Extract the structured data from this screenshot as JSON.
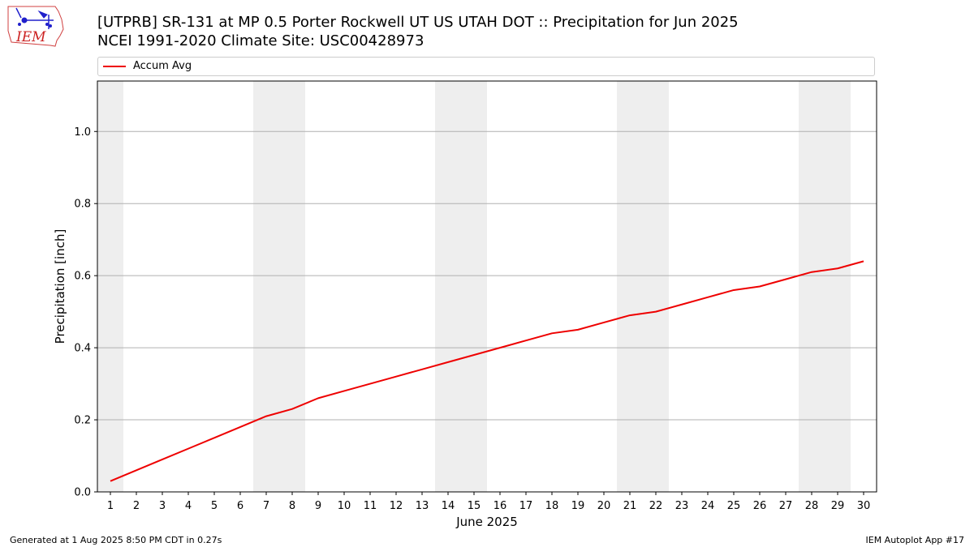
{
  "header": {
    "title_line1": "[UTPRB] SR-131 at MP 0.5 Porter Rockwell UT US UTAH DOT :: Precipitation for Jun 2025",
    "title_line2": "NCEI 1991-2020 Climate Site: USC00428973"
  },
  "logo": {
    "text": "IEM",
    "icon": "iowa-state-weather-icon"
  },
  "footer": {
    "left": "Generated at 1 Aug 2025 8:50 PM CDT in 0.27s",
    "right": "IEM Autoplot App #17"
  },
  "colors": {
    "series": "#ee0000",
    "weekend_band": "#eeeeee",
    "grid": "#b0b0b0"
  },
  "chart_data": {
    "type": "line",
    "xlabel": "June 2025",
    "ylabel": "Precipitation [inch]",
    "xlim": [
      0.5,
      30.5
    ],
    "ylim": [
      0,
      1.14
    ],
    "yticks": [
      0.0,
      0.2,
      0.4,
      0.6,
      0.8,
      1.0
    ],
    "ytick_labels": [
      "0.0",
      "0.2",
      "0.4",
      "0.6",
      "0.8",
      "1.0"
    ],
    "grid": "horizontal",
    "legend_placement": "top",
    "x": [
      1,
      2,
      3,
      4,
      5,
      6,
      7,
      8,
      9,
      10,
      11,
      12,
      13,
      14,
      15,
      16,
      17,
      18,
      19,
      20,
      21,
      22,
      23,
      24,
      25,
      26,
      27,
      28,
      29,
      30
    ],
    "xtick_labels": [
      "1",
      "2",
      "3",
      "4",
      "5",
      "6",
      "7",
      "8",
      "9",
      "10",
      "11",
      "12",
      "13",
      "14",
      "15",
      "16",
      "17",
      "18",
      "19",
      "20",
      "21",
      "22",
      "23",
      "24",
      "25",
      "26",
      "27",
      "28",
      "29",
      "30"
    ],
    "weekend_bands": [
      [
        0.5,
        1.5
      ],
      [
        6.5,
        8.5
      ],
      [
        13.5,
        15.5
      ],
      [
        20.5,
        22.5
      ],
      [
        27.5,
        29.5
      ]
    ],
    "series": [
      {
        "name": "Accum Avg",
        "color": "#ee0000",
        "values": [
          0.03,
          0.06,
          0.09,
          0.12,
          0.15,
          0.18,
          0.21,
          0.23,
          0.26,
          0.28,
          0.3,
          0.32,
          0.34,
          0.36,
          0.38,
          0.4,
          0.42,
          0.44,
          0.45,
          0.47,
          0.49,
          0.5,
          0.52,
          0.54,
          0.56,
          0.57,
          0.59,
          0.61,
          0.62,
          0.64
        ]
      }
    ]
  }
}
